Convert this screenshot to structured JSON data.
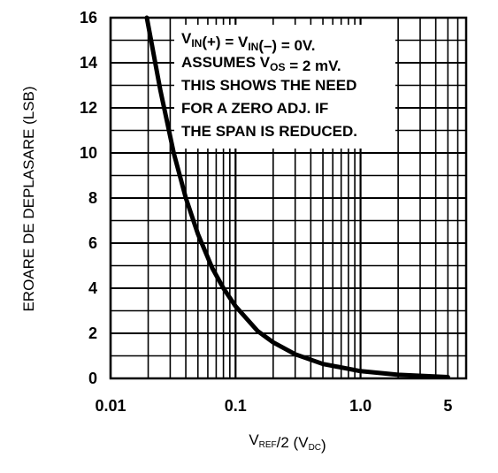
{
  "chart_data": {
    "type": "line",
    "title": "",
    "xlabel": "V",
    "xlabel_sub": "REF",
    "xlabel_rest": "/2 (V",
    "xlabel_unit_sub": "DC",
    "xlabel_end": ")",
    "ylabel": "EROARE DE DEPLASARE (LSB)",
    "x_scale": "log",
    "xlim": [
      0.01,
      7
    ],
    "ylim": [
      0,
      16
    ],
    "grid": true,
    "legend": "none",
    "colors": {
      "curve": "#000000",
      "grid": "#000000",
      "background": "#ffffff"
    },
    "x_ticks": [
      {
        "value": 0.01,
        "label": "0.01"
      },
      {
        "value": 0.1,
        "label": "0.1"
      },
      {
        "value": 1.0,
        "label": "1.0"
      },
      {
        "value": 5,
        "label": "5"
      }
    ],
    "y_ticks": [
      {
        "value": 0,
        "label": "0"
      },
      {
        "value": 2,
        "label": "2"
      },
      {
        "value": 4,
        "label": "4"
      },
      {
        "value": 6,
        "label": "6"
      },
      {
        "value": 8,
        "label": "8"
      },
      {
        "value": 10,
        "label": "10"
      },
      {
        "value": 12,
        "label": "12"
      },
      {
        "value": 14,
        "label": "14"
      },
      {
        "value": 16,
        "label": "16"
      }
    ],
    "series": [
      {
        "x": [
          0.0195,
          0.025,
          0.032,
          0.04,
          0.05,
          0.065,
          0.08,
          0.1,
          0.15,
          0.2,
          0.3,
          0.5,
          1.0,
          2.0,
          5.0
        ],
        "y": [
          16,
          12.8,
          10.0,
          8.0,
          6.4,
          4.9,
          4.0,
          3.2,
          2.1,
          1.6,
          1.07,
          0.64,
          0.32,
          0.16,
          0.06
        ]
      }
    ],
    "annotation": {
      "lines": [
        [
          {
            "t": "V"
          },
          {
            "t": "IN",
            "sub": true
          },
          {
            "t": "(+) = V"
          },
          {
            "t": "IN",
            "sub": true
          },
          {
            "t": "(–) = 0V."
          }
        ],
        [
          {
            "t": "ASSUMES V"
          },
          {
            "t": "OS",
            "sub": true
          },
          {
            "t": " = 2 mV."
          }
        ],
        [
          {
            "t": "THIS SHOWS THE NEED"
          }
        ],
        [
          {
            "t": "FOR A ZERO ADJ. IF"
          }
        ],
        [
          {
            "t": "THE SPAN IS REDUCED."
          }
        ]
      ]
    }
  }
}
